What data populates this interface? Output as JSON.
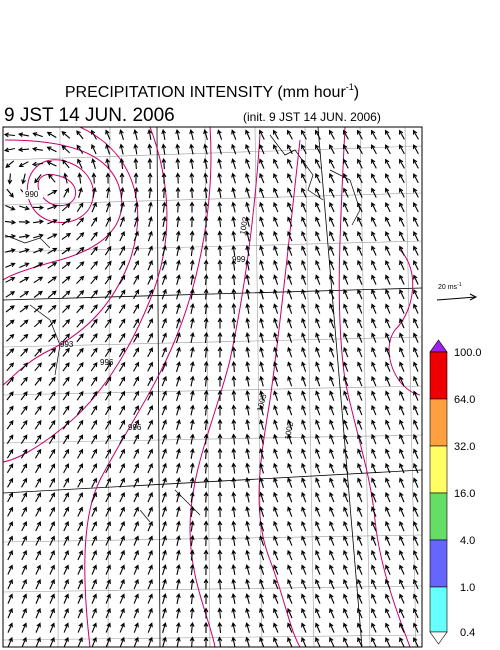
{
  "header": {
    "title": "PRECIPITATION INTENSITY (mm hour",
    "title_exponent": "-1",
    "title_close": ")",
    "valid_time": "9 JST 14 JUN. 2006",
    "init_time": "(init. 9 JST 14 JUN. 2006)"
  },
  "vector_key": {
    "unit": "20 ms",
    "exponent": "-1"
  },
  "colorbar": {
    "labels": [
      "100.0",
      "64.0",
      "32.0",
      "16.0",
      "4.0",
      "1.0",
      "0.4"
    ]
  },
  "contours": {
    "labels": [
      "990",
      "993",
      "996",
      "996",
      "999",
      "1002",
      "1002",
      "1005"
    ]
  }
}
